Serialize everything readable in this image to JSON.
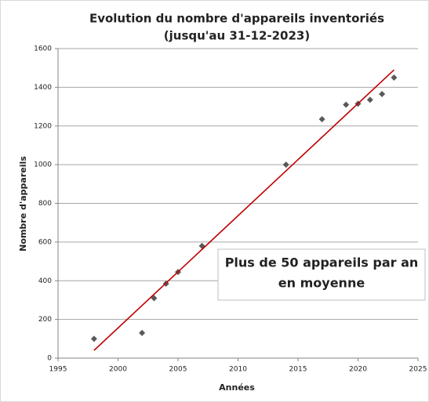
{
  "chart_data": {
    "type": "scatter",
    "title": "Evolution du nombre d'appareils inventoriés",
    "subtitle": "(jusqu'au 31-12-2023)",
    "x_label": "Années",
    "y_label": "Nombre d'appareils",
    "annotation": [
      "Plus de 50 appareils par an",
      "en moyenne"
    ],
    "x": [
      1998,
      2002,
      2003,
      2004,
      2005,
      2007,
      2014,
      2017,
      2019,
      2020,
      2021,
      2022,
      2023
    ],
    "values": [
      100,
      130,
      310,
      385,
      445,
      580,
      1000,
      1235,
      1310,
      1315,
      1335,
      1365,
      1450
    ],
    "color": "#595959",
    "trendline": {
      "x": [
        1998,
        2023
      ],
      "values": [
        40,
        1490
      ],
      "color": "#c00000"
    },
    "xlim": [
      1995,
      2025
    ],
    "xticks": [
      1995,
      2000,
      2005,
      2010,
      2015,
      2020,
      2025
    ],
    "ylim": [
      0,
      1600
    ],
    "yticks": [
      0,
      200,
      400,
      600,
      800,
      1000,
      1200,
      1400,
      1600
    ],
    "grid": true
  }
}
